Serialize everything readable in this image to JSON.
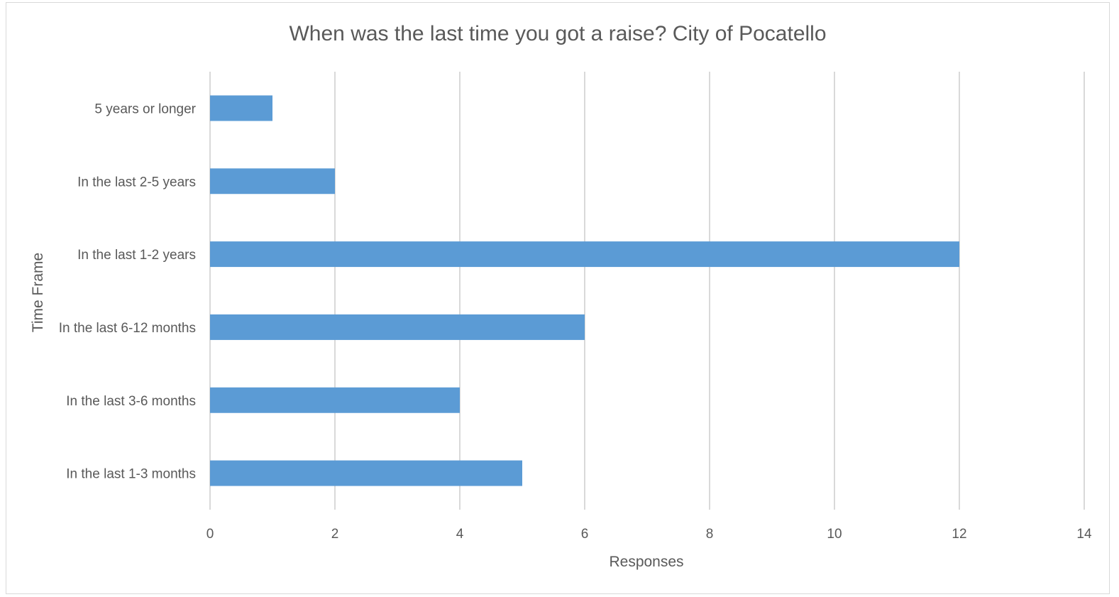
{
  "chart_data": {
    "type": "bar",
    "orientation": "horizontal",
    "title": "When was the last time you got a raise? City of Pocatello",
    "xlabel": "Responses",
    "ylabel": "Time Frame",
    "categories": [
      "5 years or longer",
      "In the last 2-5 years",
      "In the last 1-2 years",
      "In the last 6-12 months",
      "In the last 3-6 months",
      "In the last 1-3 months"
    ],
    "values": [
      1,
      2,
      12,
      6,
      4,
      5
    ],
    "xlim": [
      0,
      14
    ],
    "xticks": [
      "0",
      "2",
      "4",
      "6",
      "8",
      "10",
      "12",
      "14"
    ],
    "grid": true,
    "legend": "none",
    "bar_color": "#5b9bd5"
  }
}
